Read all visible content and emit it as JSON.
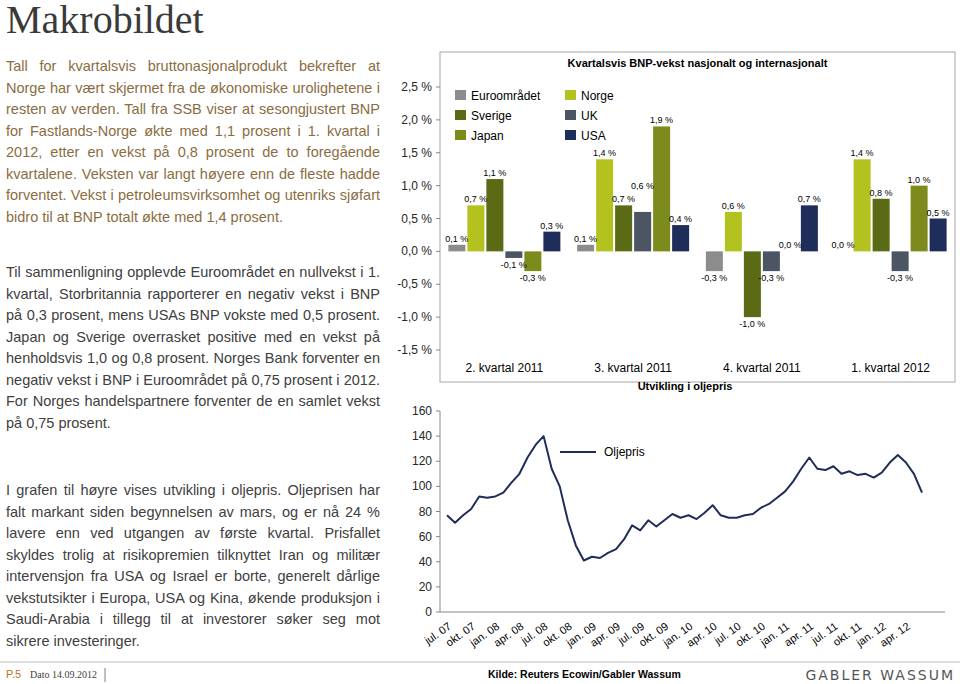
{
  "page": {
    "title": "Makrobildet",
    "paragraphs": [
      "Tall for kvartalsvis bruttonasjonalprodukt bekrefter at Norge har vært skjermet fra de økonomiske urolighetene i resten av verden. Tall fra SSB viser at sesongjustert BNP for Fastlands-Norge økte med 1,1 prosent i 1. kvartal i 2012, etter en vekst på 0,8 prosent de to foregående kvartalene. Veksten var langt høyere enn de fleste hadde forventet. Vekst i petroleumsvirksomhet og utenriks sjøfart bidro til at BNP totalt økte med 1,4 prosent.",
      "Til sammenligning opplevde Euroområdet en nullvekst i 1. kvartal, Storbritannia rapporterer en negativ vekst i BNP på 0,3 prosent, mens USAs BNP vokste med 0,5 prosent. Japan og Sverige overrasket positive med en vekst på henholdsvis 1,0 og 0,8 prosent. Norges Bank forventer en negativ vekst i BNP i Euroområdet på 0,75 prosent i 2012. For Norges handelspartnere forventer de en samlet vekst på 0,75 prosent.",
      "I grafen til høyre vises utvikling i oljepris. Oljeprisen har falt markant siden begynnelsen av mars, og er nå 24 % lavere enn ved utgangen av første kvartal. Prisfallet skyldes trolig at risikopremien tilknyttet Iran og militær intervensjon fra USA og Israel er borte, generelt dårlige vekstutsikter i Europa, USA og Kina, økende produksjon i Saudi-Arabia i tillegg til at investorer søker seg mot sikrere investeringer."
    ],
    "footer": {
      "page": "P.5",
      "date": "Dato 14.09.2012",
      "source": "Kilde: Reuters Ecowin/Gabler Wassum",
      "logo": "GABLER WASSUM"
    }
  },
  "chart_data": [
    {
      "type": "bar",
      "title": "Kvartalsvis BNP-vekst nasjonalt og internasjonalt",
      "categories": [
        "2. kvartal 2011",
        "3. kvartal 2011",
        "4. kvartal 2011",
        "1. kvartal 2012"
      ],
      "series": [
        {
          "name": "Euroområdet",
          "color": "#8c8c8c",
          "values": [
            0.1,
            0.1,
            -0.3,
            0.0
          ],
          "value_labels": [
            "0,1 %",
            "0,1 %",
            "-0,3 %",
            "0,0 %"
          ]
        },
        {
          "name": "Norge",
          "color": "#b3c21f",
          "values": [
            0.7,
            1.4,
            0.6,
            1.4
          ],
          "value_labels": [
            "0,7 %",
            "1,4 %",
            "0,6 %",
            "1,4 %"
          ]
        },
        {
          "name": "Sverige",
          "color": "#5b6a14",
          "values": [
            1.1,
            0.7,
            -1.0,
            0.8
          ],
          "value_labels": [
            "1,1 %",
            "0,7 %",
            "-1,0 %",
            "0,8 %"
          ]
        },
        {
          "name": "UK",
          "color": "#4b5563",
          "values": [
            -0.1,
            0.6,
            -0.3,
            -0.3
          ],
          "value_labels": [
            "-0,1 %",
            "0,6 %",
            "-0,3 %",
            "-0,3 %"
          ]
        },
        {
          "name": "Japan",
          "color": "#7d8b1c",
          "values": [
            -0.3,
            1.9,
            0.0,
            1.0
          ],
          "value_labels": [
            "-0,3 %",
            "1,9 %",
            "0,0 %",
            "1,0 %"
          ]
        },
        {
          "name": "USA",
          "color": "#1f2d5a",
          "values": [
            0.3,
            0.4,
            0.7,
            0.5
          ],
          "value_labels": [
            "0,3 %",
            "0,4 %",
            "0,7 %",
            "0,5 %"
          ]
        }
      ],
      "ylim": [
        -1.5,
        2.5
      ],
      "yticks": [
        {
          "value": -1.5,
          "label": "-1,5 %"
        },
        {
          "value": -1.0,
          "label": "-1,0 %"
        },
        {
          "value": -0.5,
          "label": "-0,5 %"
        },
        {
          "value": 0.0,
          "label": "0,0 %"
        },
        {
          "value": 0.5,
          "label": "0,5 %"
        },
        {
          "value": 1.0,
          "label": "1,0 %"
        },
        {
          "value": 1.5,
          "label": "1,5 %"
        },
        {
          "value": 2.0,
          "label": "2,0 %"
        },
        {
          "value": 2.5,
          "label": "2,5 %"
        }
      ],
      "data_labels": true,
      "legend": "top-left",
      "grid": false
    },
    {
      "type": "line",
      "title": "Utvikling i oljepris",
      "categories": [
        "jul. 07",
        null,
        null,
        "okt. 07",
        null,
        null,
        "jan. 08",
        null,
        null,
        "apr. 08",
        null,
        null,
        "jul. 08",
        null,
        null,
        "okt. 08",
        null,
        null,
        "jan. 09",
        null,
        null,
        "apr. 09",
        null,
        null,
        "jul. 09",
        null,
        null,
        "okt. 09",
        null,
        null,
        "jan. 10",
        null,
        null,
        "apr. 10",
        null,
        null,
        "jul. 10",
        null,
        null,
        "okt. 10",
        null,
        null,
        "jan. 11",
        null,
        null,
        "apr. 11",
        null,
        null,
        "jul. 11",
        null,
        null,
        "okt. 11",
        null,
        null,
        "jan. 12",
        null,
        null,
        "apr. 12",
        null,
        null
      ],
      "series": [
        {
          "name": "Oljepris",
          "color": "#1f2d5a",
          "values": [
            77,
            71,
            77,
            82,
            92,
            91,
            92,
            95,
            103,
            110,
            123,
            133,
            140,
            114,
            100,
            73,
            53,
            41,
            44,
            43,
            47,
            50,
            58,
            69,
            65,
            73,
            68,
            73,
            78,
            75,
            77,
            74,
            79,
            85,
            77,
            75,
            75,
            77,
            78,
            83,
            86,
            91,
            96,
            104,
            114,
            123,
            114,
            113,
            116,
            110,
            112,
            109,
            110,
            107,
            111,
            119,
            125,
            119,
            110,
            95
          ]
        }
      ],
      "ylim": [
        0,
        160
      ],
      "yticks": [
        0,
        20,
        40,
        60,
        80,
        100,
        120,
        140,
        160
      ],
      "legend": "top-left",
      "grid": false
    }
  ]
}
